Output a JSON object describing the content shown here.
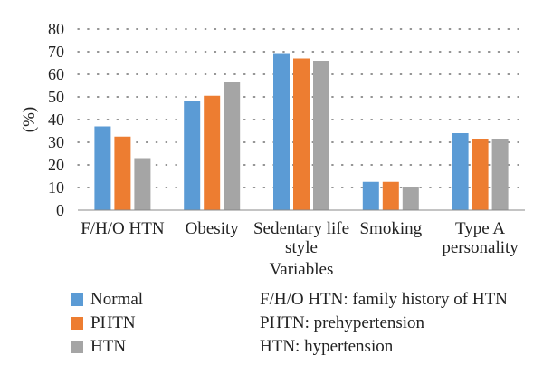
{
  "chart_data": {
    "type": "bar",
    "categories": [
      "F/H/O HTN",
      "Obesity",
      "Sedentary life style",
      "Smoking",
      "Type A personality"
    ],
    "category_lines": [
      [
        "F/H/O HTN"
      ],
      [
        "Obesity"
      ],
      [
        "Sedentary life",
        "style"
      ],
      [
        "Smoking"
      ],
      [
        "Type A",
        "personality"
      ]
    ],
    "series": [
      {
        "name": "Normal",
        "color": "#5B9BD5",
        "values": [
          37,
          48,
          69,
          12.5,
          34
        ]
      },
      {
        "name": "PHTN",
        "color": "#ED7D31",
        "values": [
          32.5,
          50.5,
          67,
          12.5,
          31.5
        ]
      },
      {
        "name": "HTN",
        "color": "#A5A5A5",
        "values": [
          23,
          56.5,
          66,
          10,
          31.5
        ]
      }
    ],
    "title": "",
    "xlabel": "Variables",
    "ylabel": "(%)",
    "ylim": [
      0,
      80
    ],
    "yticks": [
      0,
      10,
      20,
      30,
      40,
      50,
      60,
      70,
      80
    ],
    "grid": "dotted-horizontal",
    "legend_position": "bottom-left"
  },
  "notes": [
    "F/H/O HTN: family history of HTN",
    "PHTN: prehypertension",
    "HTN: hypertension"
  ]
}
